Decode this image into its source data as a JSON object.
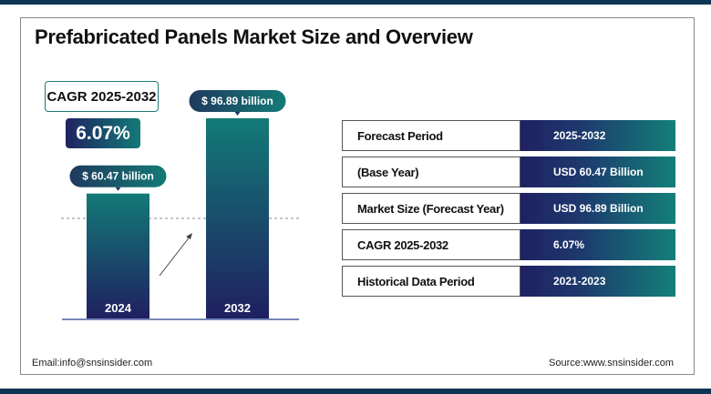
{
  "title": "Prefabricated Panels Market Size and Overview",
  "cagr_label": "CAGR 2025-2032",
  "cagr_value": "6.07%",
  "chart_data": {
    "type": "bar",
    "categories": [
      "2024",
      "2032"
    ],
    "values": [
      60.47,
      96.89
    ],
    "data_labels": [
      "$ 60.47 billion",
      "$ 96.89 billion"
    ],
    "colors": {
      "top": "#137a77",
      "bottom": "#1f2060"
    }
  },
  "table": [
    {
      "label": "Forecast Period",
      "value": "2025-2032"
    },
    {
      "label": "(Base Year)",
      "value": "USD 60.47 Billion"
    },
    {
      "label": "Market Size (Forecast Year)",
      "value": "USD 96.89 Billion"
    },
    {
      "label": "CAGR 2025-2032",
      "value": "6.07%"
    },
    {
      "label": "Historical Data Period",
      "value": "2021-2023"
    }
  ],
  "footer": {
    "email": "Email:info@snsinsider.com",
    "source": "Source:www.snsinsider.com"
  }
}
